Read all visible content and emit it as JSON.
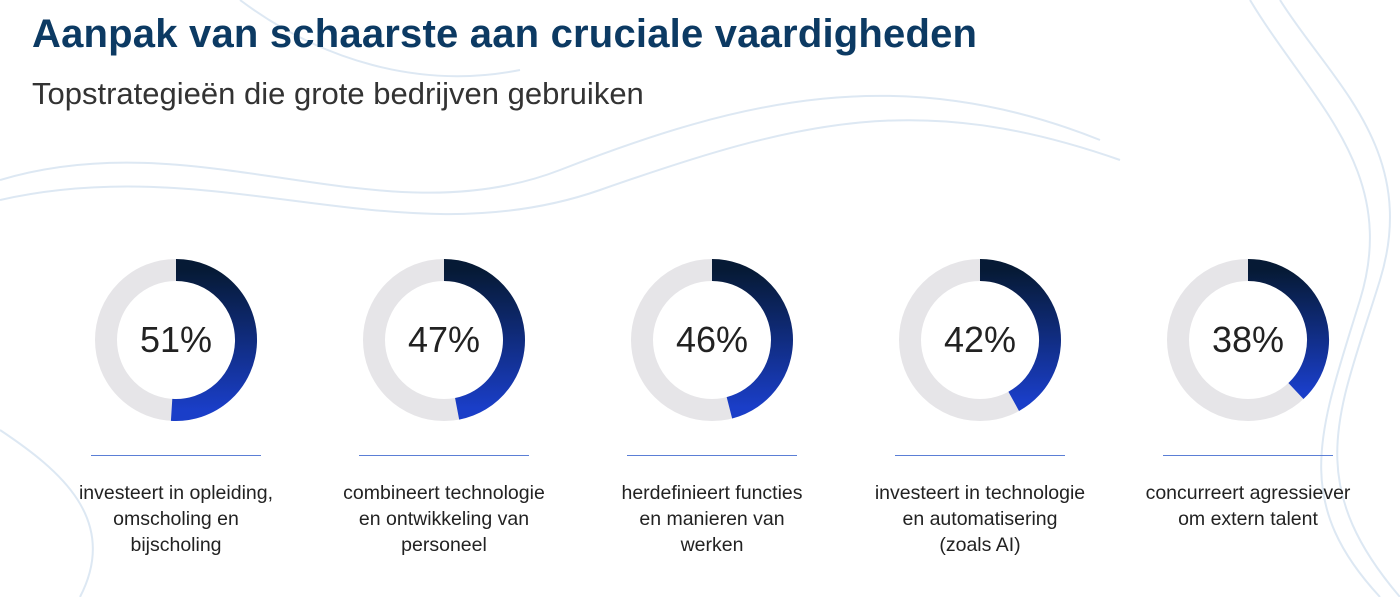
{
  "header": {
    "title": "Aanpak van schaarste aan cruciale vaardigheden",
    "subtitle": "Topstrategieën die grote bedrijven gebruiken"
  },
  "colors": {
    "title": "#0c3a63",
    "ring_track": "#e6e5e8",
    "ring_start": "#061a35",
    "ring_end": "#1a3ec8",
    "rule": "#5b7fd6"
  },
  "chart_data": {
    "type": "donut",
    "title": "Aanpak van schaarste aan cruciale vaardigheden",
    "subtitle": "Topstrategieën die grote bedrijven gebruiken",
    "unit": "%",
    "max": 100,
    "items": [
      {
        "value": 51,
        "value_label": "51%",
        "label_lines": [
          "investeert in opleiding,",
          "omscholing en",
          "bijscholing"
        ]
      },
      {
        "value": 47,
        "value_label": "47%",
        "label_lines": [
          "combineert technologie",
          "en ontwikkeling van",
          "personeel"
        ]
      },
      {
        "value": 46,
        "value_label": "46%",
        "label_lines": [
          "herdefinieert functies",
          "en manieren van",
          "werken"
        ]
      },
      {
        "value": 42,
        "value_label": "42%",
        "label_lines": [
          "investeert in technologie",
          "en automatisering",
          "(zoals AI)"
        ]
      },
      {
        "value": 38,
        "value_label": "38%",
        "label_lines": [
          "concurreert agressiever",
          "om extern talent"
        ]
      }
    ]
  }
}
